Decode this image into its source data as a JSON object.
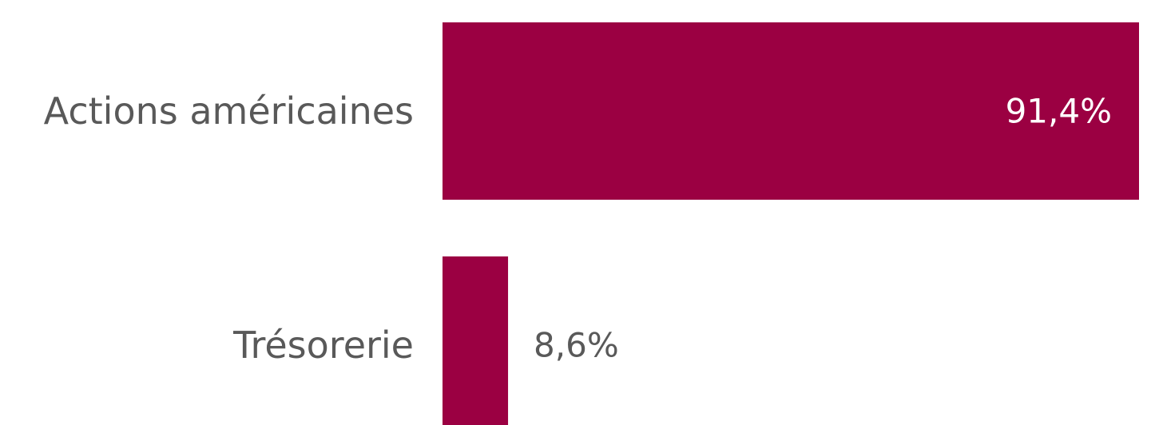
{
  "chart_data": {
    "type": "bar",
    "orientation": "horizontal",
    "categories": [
      "Actions américaines",
      "Trésorerie"
    ],
    "values": [
      91.4,
      8.6
    ],
    "value_labels": [
      "91,4%",
      "8,6%"
    ],
    "unit": "%",
    "xlim": [
      0,
      91.4
    ],
    "grid": false,
    "legend": "none",
    "colors": {
      "bar": "#9B0042",
      "label_text": "#595959",
      "inside_value_text": "#FFFFFF",
      "outside_value_text": "#595959"
    }
  }
}
